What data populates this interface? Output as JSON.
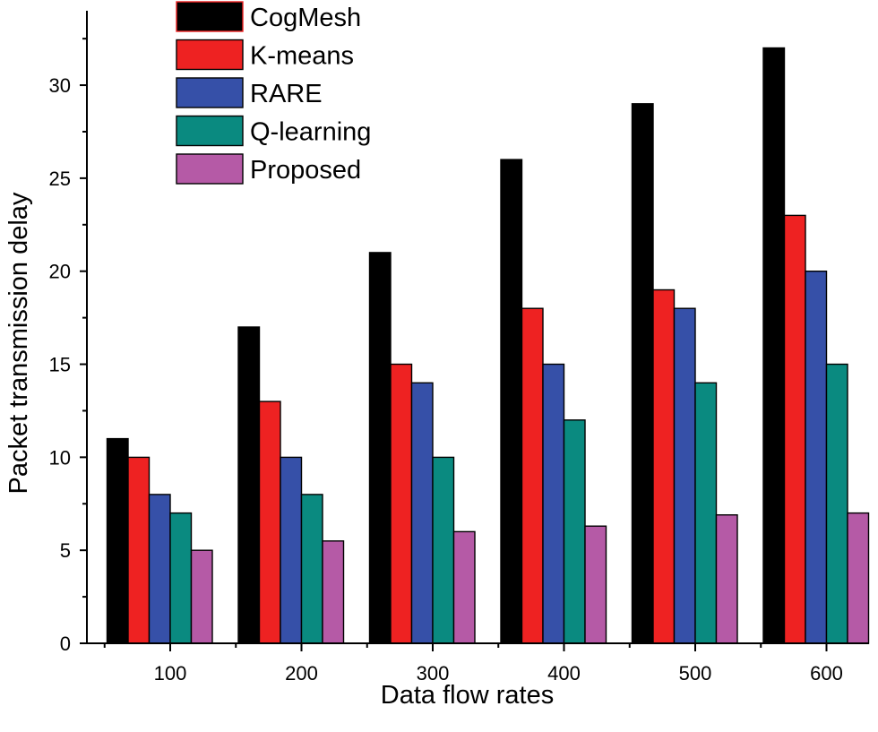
{
  "chart_data": {
    "type": "bar",
    "title": "",
    "xlabel": "Data flow rates",
    "ylabel": "Packet transmission delay",
    "categories": [
      "100",
      "200",
      "300",
      "400",
      "500",
      "600"
    ],
    "ylim": [
      0,
      34
    ],
    "yticks": [
      0,
      5,
      10,
      15,
      20,
      25,
      30
    ],
    "grid": false,
    "legend_position": "top-left",
    "series": [
      {
        "name": "CogMesh",
        "color": "#000000",
        "values": [
          11,
          17,
          21,
          26,
          29,
          32
        ]
      },
      {
        "name": "K-means",
        "color": "#ee2222",
        "values": [
          10,
          13,
          15,
          18,
          19,
          23
        ]
      },
      {
        "name": "RARE",
        "color": "#3650a8",
        "values": [
          8,
          10,
          14,
          15,
          18,
          20
        ]
      },
      {
        "name": "Q-learning",
        "color": "#0a8a80",
        "values": [
          7,
          8,
          10,
          12,
          14,
          15
        ]
      },
      {
        "name": "Proposed",
        "color": "#b55aa6",
        "values": [
          5,
          5.5,
          6,
          6.3,
          6.9,
          7
        ]
      }
    ]
  }
}
